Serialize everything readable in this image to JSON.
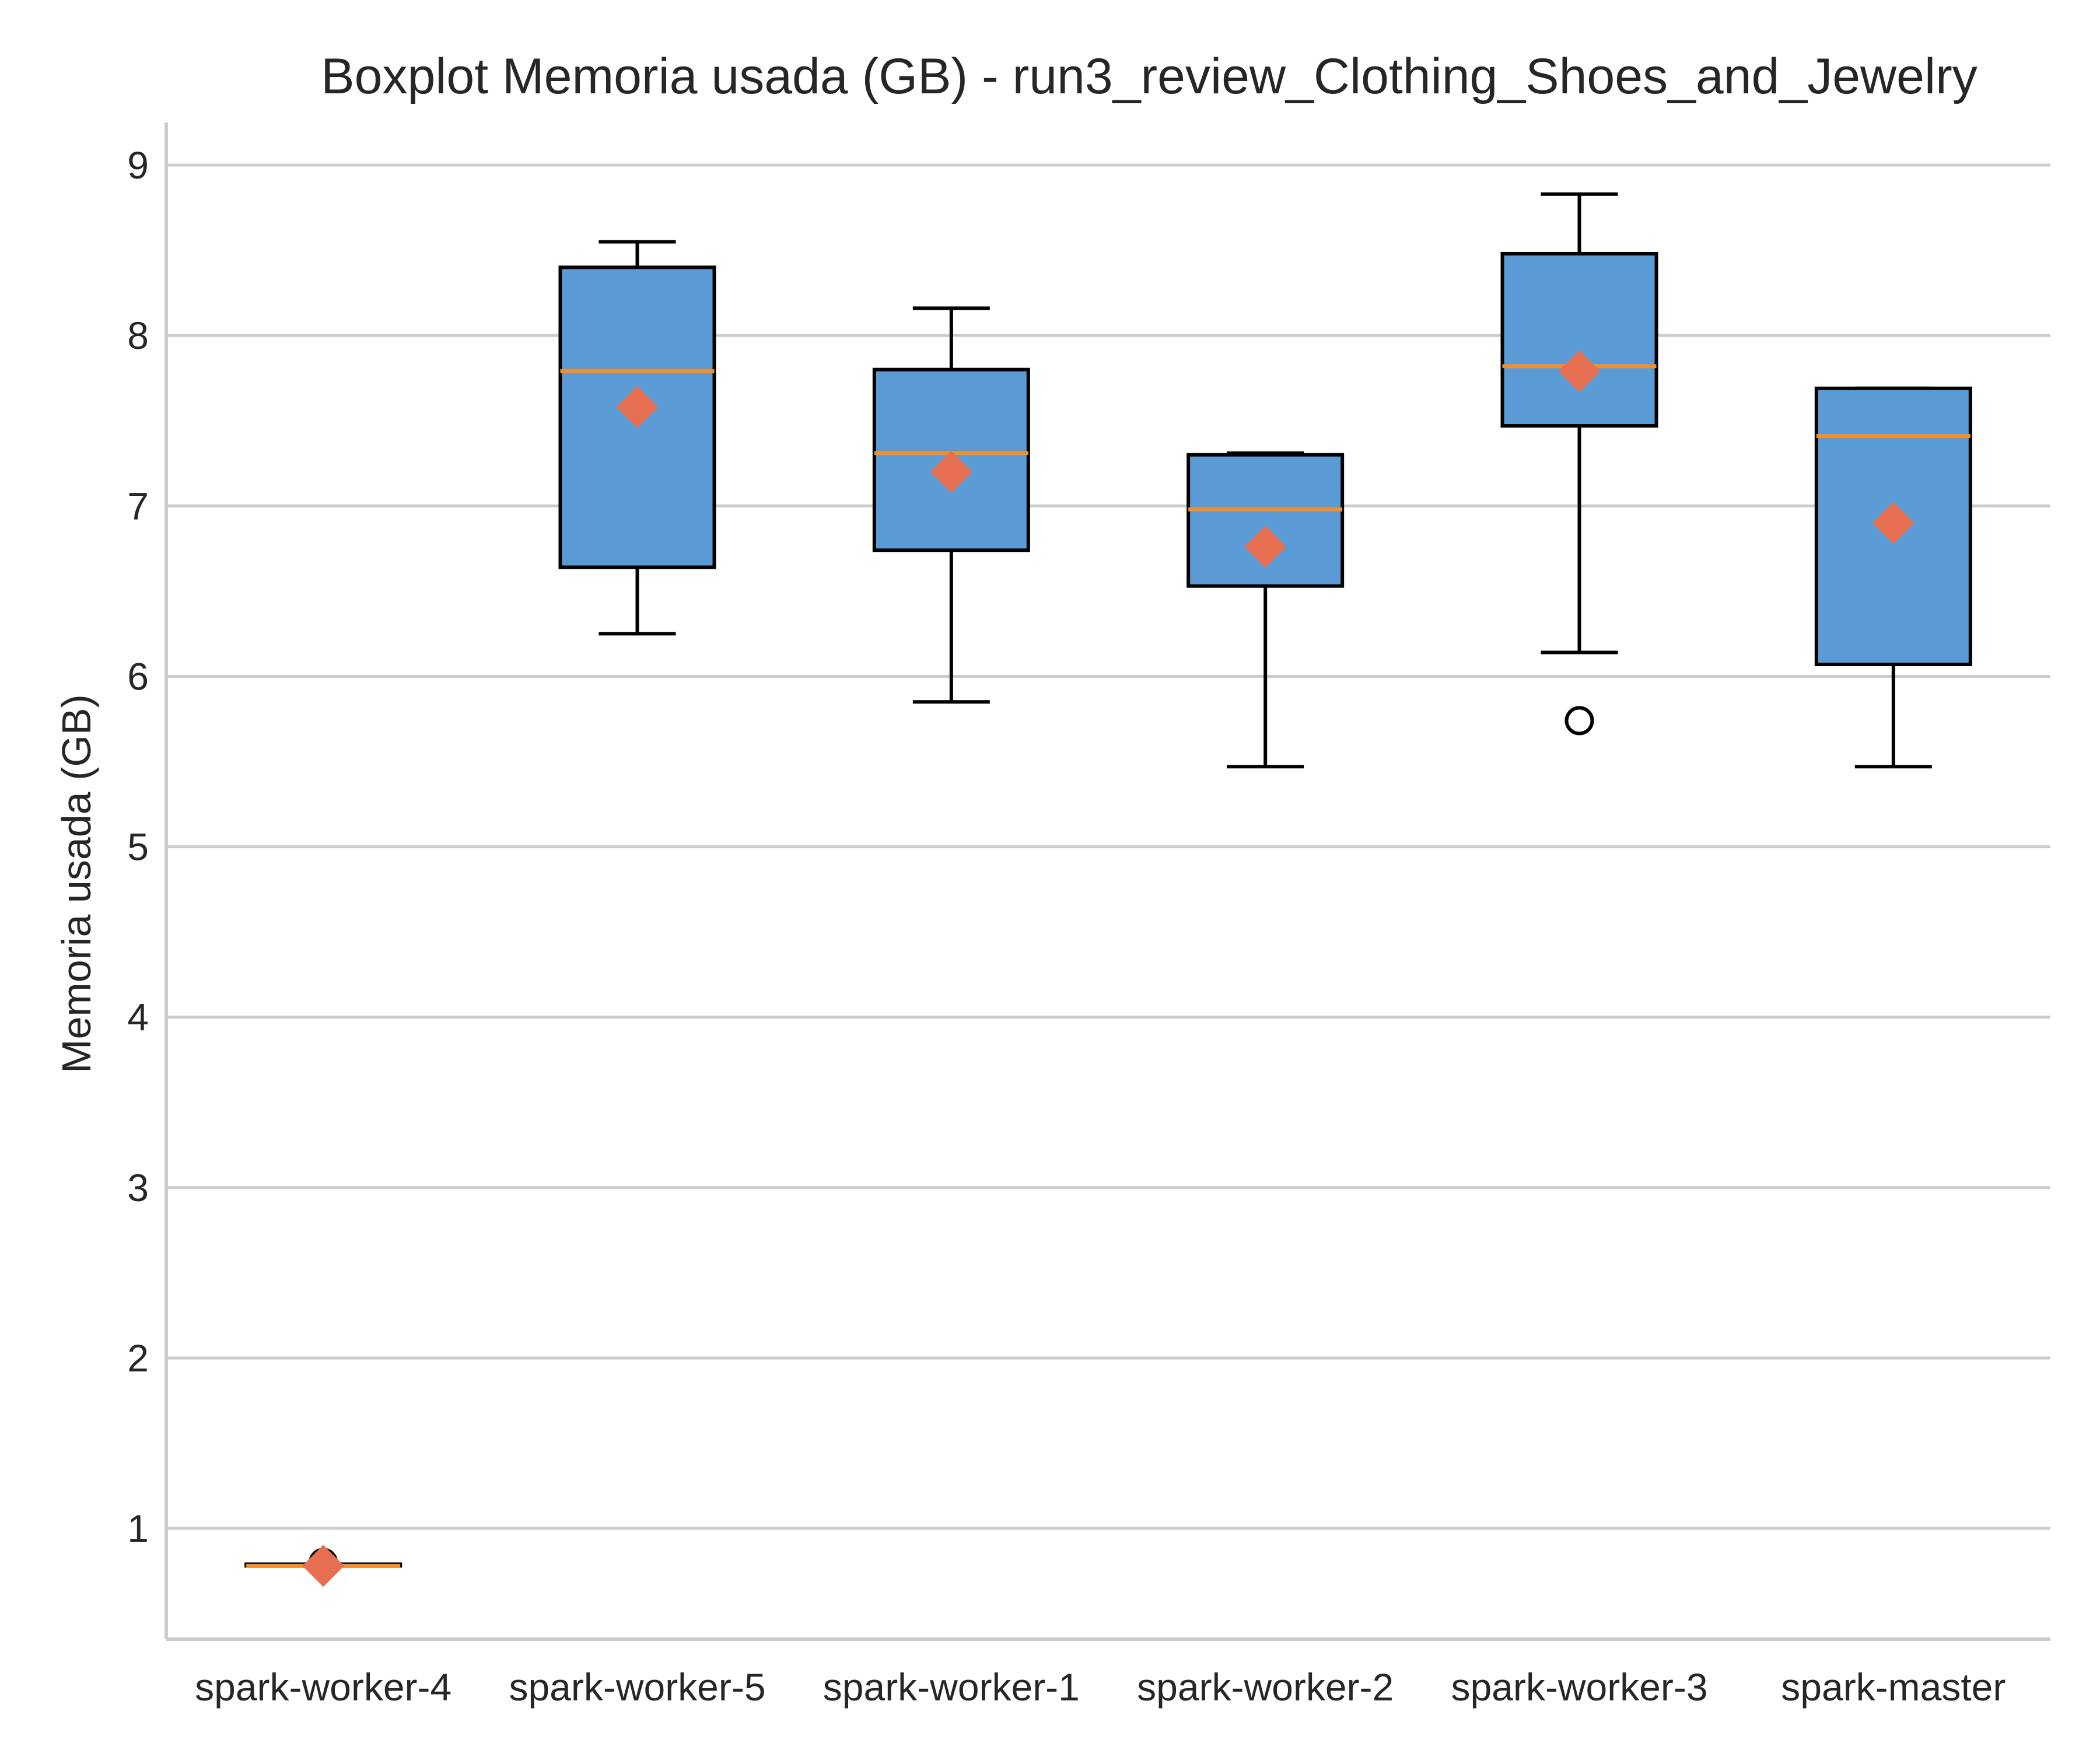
{
  "chart_data": {
    "type": "boxplot",
    "title": "Boxplot Memoria usada (GB) - run3_review_Clothing_Shoes_and_Jewelry",
    "xlabel": "",
    "ylabel": "Memoria usada (GB)",
    "ylim": [
      0.35,
      9.25
    ],
    "yticks": [
      1,
      2,
      3,
      4,
      5,
      6,
      7,
      8,
      9
    ],
    "grid": "horizontal",
    "categories": [
      "spark-worker-4",
      "spark-worker-5",
      "spark-worker-1",
      "spark-worker-2",
      "spark-worker-3",
      "spark-master"
    ],
    "boxes": [
      {
        "whisker_low": 0.78,
        "q1": 0.78,
        "median": 0.78,
        "q3": 0.79,
        "whisker_high": 0.79,
        "mean": 0.78,
        "outliers": [
          0.8
        ]
      },
      {
        "whisker_low": 6.25,
        "q1": 6.64,
        "median": 7.79,
        "q3": 8.4,
        "whisker_high": 8.55,
        "mean": 7.58,
        "outliers": []
      },
      {
        "whisker_low": 5.85,
        "q1": 6.74,
        "median": 7.31,
        "q3": 7.8,
        "whisker_high": 8.16,
        "mean": 7.2,
        "outliers": []
      },
      {
        "whisker_low": 5.47,
        "q1": 6.53,
        "median": 6.98,
        "q3": 7.3,
        "whisker_high": 7.31,
        "mean": 6.76,
        "outliers": []
      },
      {
        "whisker_low": 6.14,
        "q1": 7.47,
        "median": 7.82,
        "q3": 8.48,
        "whisker_high": 8.83,
        "mean": 7.79,
        "outliers": [
          5.74
        ]
      },
      {
        "whisker_low": 5.47,
        "q1": 6.07,
        "median": 7.41,
        "q3": 7.69,
        "whisker_high": 7.69,
        "mean": 6.9,
        "outliers": []
      }
    ],
    "colors": {
      "box_fill": "#5b9bd5",
      "box_edge": "#000000",
      "median": "#f28e2b",
      "mean_marker": "#e76f51",
      "grid": "#cccccc",
      "axis": "#cccccc",
      "text": "#262626"
    }
  }
}
